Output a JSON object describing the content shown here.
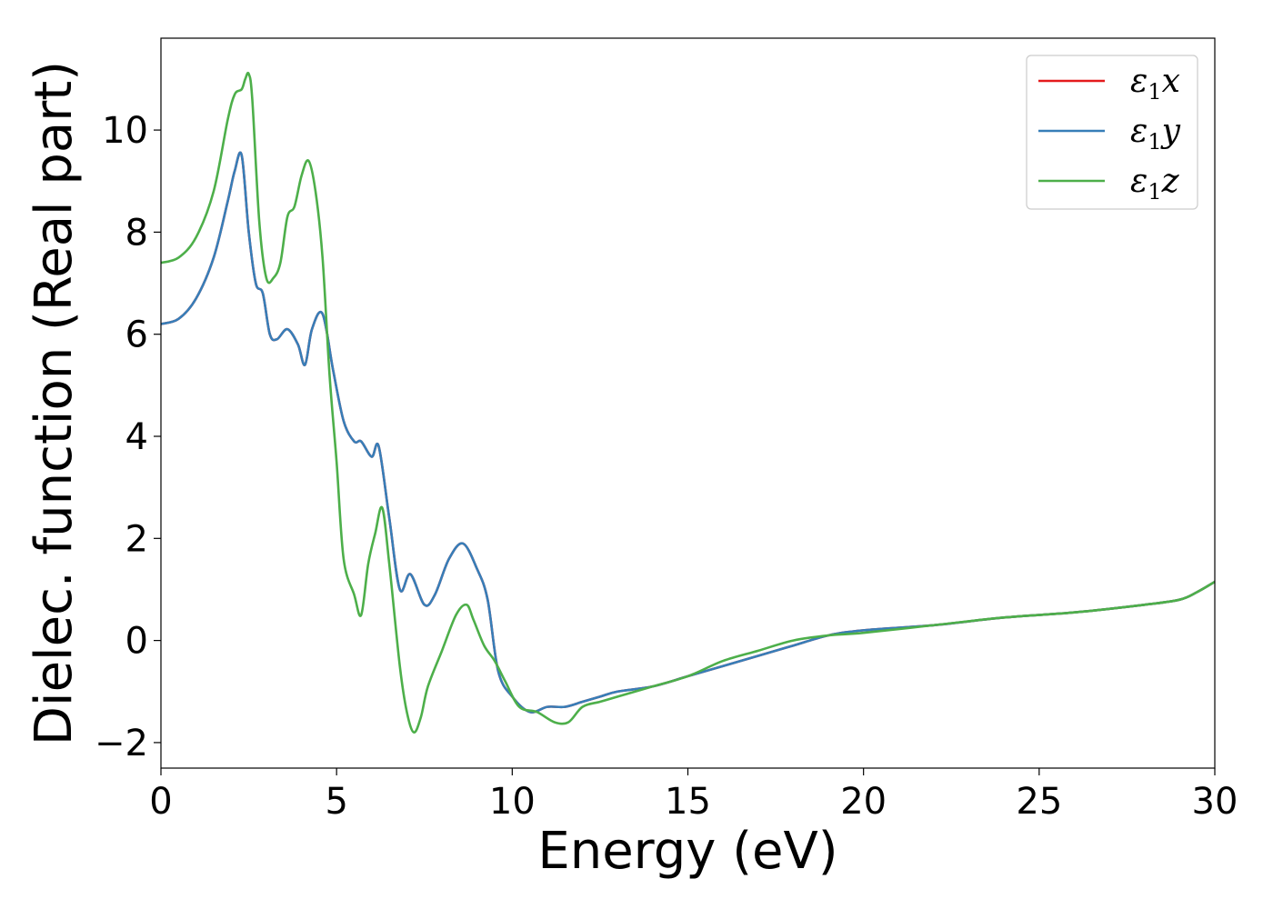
{
  "chart_data": {
    "type": "line",
    "xlabel": "Energy (eV)",
    "ylabel": "Dielec. function (Real part)",
    "xlim": [
      0,
      30
    ],
    "ylim": [
      -2.5,
      11.8
    ],
    "xticks": [
      0,
      5,
      10,
      15,
      20,
      25,
      30
    ],
    "yticks": [
      -2,
      0,
      2,
      4,
      6,
      8,
      10
    ],
    "xtick_labels": [
      "0",
      "5",
      "10",
      "15",
      "20",
      "25",
      "30"
    ],
    "ytick_labels": [
      "−2",
      "0",
      "2",
      "4",
      "6",
      "8",
      "10"
    ],
    "grid": false,
    "legend_position": "top-right",
    "series": [
      {
        "name": "ε1x",
        "legend_base": "ε",
        "legend_sub": "1",
        "legend_var": "x",
        "color": "#e41a1c",
        "x": [
          0,
          0.5,
          1,
          1.5,
          1.9,
          2.1,
          2.3,
          2.5,
          2.7,
          2.9,
          3.1,
          3.3,
          3.6,
          3.9,
          4.1,
          4.3,
          4.6,
          4.9,
          5.2,
          5.5,
          5.7,
          6.0,
          6.2,
          6.5,
          6.8,
          7.1,
          7.5,
          7.8,
          8.2,
          8.6,
          9.0,
          9.3,
          9.6,
          10.0,
          10.5,
          11.0,
          11.5,
          12.0,
          12.5,
          13.0,
          14.0,
          15.0,
          16.0,
          17.0,
          18.0,
          19.0,
          20.0,
          22.0,
          24.0,
          26.0,
          28.0,
          29.0,
          29.5,
          30.0
        ],
        "y": [
          6.2,
          6.3,
          6.7,
          7.5,
          8.6,
          9.2,
          9.5,
          8.0,
          7.0,
          6.8,
          6.0,
          5.9,
          6.1,
          5.8,
          5.4,
          6.1,
          6.4,
          5.3,
          4.3,
          3.9,
          3.9,
          3.6,
          3.8,
          2.4,
          1.0,
          1.3,
          0.7,
          0.9,
          1.6,
          1.9,
          1.4,
          0.8,
          -0.6,
          -1.1,
          -1.4,
          -1.3,
          -1.3,
          -1.2,
          -1.1,
          -1.0,
          -0.9,
          -0.7,
          -0.5,
          -0.3,
          -0.1,
          0.1,
          0.2,
          0.3,
          0.45,
          0.55,
          0.7,
          0.8,
          0.95,
          1.15
        ]
      },
      {
        "name": "ε1y",
        "legend_base": "ε",
        "legend_sub": "1",
        "legend_var": "y",
        "color": "#377eb8",
        "x": [
          0,
          0.5,
          1,
          1.5,
          1.9,
          2.1,
          2.3,
          2.5,
          2.7,
          2.9,
          3.1,
          3.3,
          3.6,
          3.9,
          4.1,
          4.3,
          4.6,
          4.9,
          5.2,
          5.5,
          5.7,
          6.0,
          6.2,
          6.5,
          6.8,
          7.1,
          7.5,
          7.8,
          8.2,
          8.6,
          9.0,
          9.3,
          9.6,
          10.0,
          10.5,
          11.0,
          11.5,
          12.0,
          12.5,
          13.0,
          14.0,
          15.0,
          16.0,
          17.0,
          18.0,
          19.0,
          20.0,
          22.0,
          24.0,
          26.0,
          28.0,
          29.0,
          29.5,
          30.0
        ],
        "y": [
          6.2,
          6.3,
          6.7,
          7.5,
          8.6,
          9.2,
          9.5,
          8.0,
          7.0,
          6.8,
          6.0,
          5.9,
          6.1,
          5.8,
          5.4,
          6.1,
          6.4,
          5.3,
          4.3,
          3.9,
          3.9,
          3.6,
          3.8,
          2.4,
          1.0,
          1.3,
          0.7,
          0.9,
          1.6,
          1.9,
          1.4,
          0.8,
          -0.6,
          -1.1,
          -1.4,
          -1.3,
          -1.3,
          -1.2,
          -1.1,
          -1.0,
          -0.9,
          -0.7,
          -0.5,
          -0.3,
          -0.1,
          0.1,
          0.2,
          0.3,
          0.45,
          0.55,
          0.7,
          0.8,
          0.95,
          1.15
        ]
      },
      {
        "name": "ε1z",
        "legend_base": "ε",
        "legend_sub": "1",
        "legend_var": "z",
        "color": "#4daf4a",
        "x": [
          0,
          0.5,
          1,
          1.5,
          1.9,
          2.1,
          2.3,
          2.4,
          2.5,
          2.6,
          2.8,
          3.0,
          3.2,
          3.4,
          3.6,
          3.8,
          4.0,
          4.2,
          4.4,
          4.6,
          4.8,
          5.0,
          5.2,
          5.5,
          5.7,
          5.9,
          6.1,
          6.3,
          6.5,
          6.8,
          7.0,
          7.2,
          7.4,
          7.6,
          8.0,
          8.4,
          8.7,
          8.9,
          9.2,
          9.5,
          9.8,
          10.2,
          10.7,
          11.2,
          11.6,
          12.0,
          12.5,
          13.0,
          14.0,
          15.0,
          16.0,
          17.0,
          18.0,
          19.0,
          20.0,
          22.0,
          24.0,
          26.0,
          28.0,
          29.0,
          29.5,
          30.0
        ],
        "y": [
          7.4,
          7.5,
          7.9,
          8.8,
          10.2,
          10.7,
          10.8,
          11.0,
          11.1,
          10.6,
          8.2,
          7.1,
          7.1,
          7.4,
          8.3,
          8.5,
          9.1,
          9.4,
          8.8,
          7.5,
          5.2,
          3.5,
          1.6,
          0.9,
          0.5,
          1.5,
          2.1,
          2.6,
          1.5,
          -0.5,
          -1.4,
          -1.8,
          -1.5,
          -0.9,
          -0.2,
          0.5,
          0.7,
          0.4,
          -0.1,
          -0.4,
          -0.8,
          -1.3,
          -1.4,
          -1.6,
          -1.6,
          -1.3,
          -1.2,
          -1.1,
          -0.9,
          -0.7,
          -0.4,
          -0.2,
          0.0,
          0.1,
          0.15,
          0.3,
          0.45,
          0.55,
          0.7,
          0.8,
          0.95,
          1.15
        ]
      }
    ]
  }
}
